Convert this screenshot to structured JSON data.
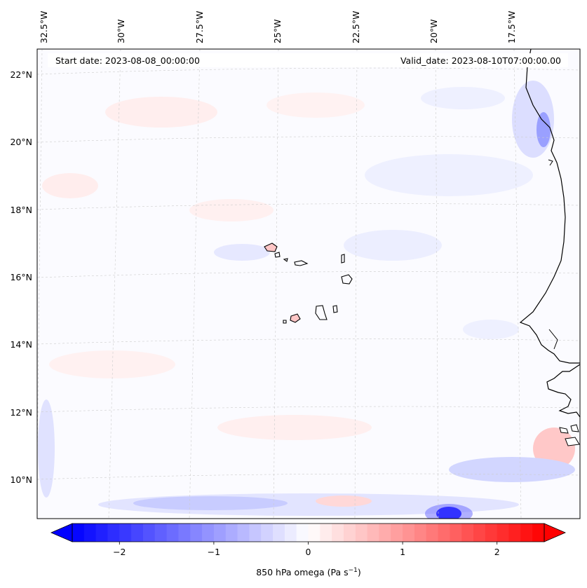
{
  "map": {
    "start_date": "Start date: 2023-08-08_00:00:00",
    "valid_date": "Valid_date: 2023-08-10T07:00:00.00",
    "lon_labels": [
      "32.5°W",
      "30°W",
      "27.5°W",
      "25°W",
      "22.5°W",
      "20°W",
      "17.5°W"
    ],
    "lat_labels": [
      "22°N",
      "20°N",
      "18°N",
      "16°N",
      "14°N",
      "12°N",
      "10°N"
    ]
  },
  "colorbar": {
    "label_prefix": "850 hPa omega (Pa s",
    "label_exp": "−1",
    "label_suffix": ")",
    "ticks": [
      "−2",
      "−1",
      "0",
      "1",
      "2"
    ],
    "tick_values": [
      -2,
      -1,
      0,
      1,
      2
    ],
    "range": [
      -2.5,
      2.5
    ],
    "colormap": "bwr",
    "low_color": "#0000ff",
    "mid_color": "#ffffff",
    "high_color": "#ff0000"
  }
}
